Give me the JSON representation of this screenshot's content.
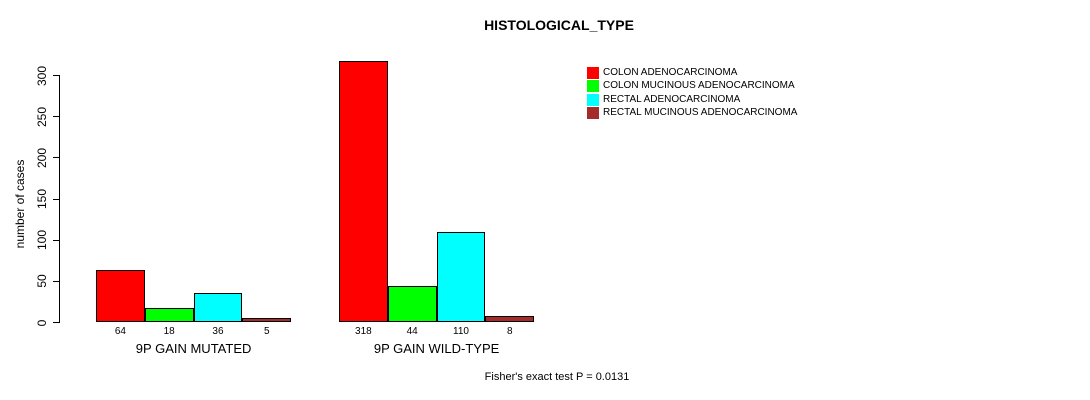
{
  "title": "HISTOLOGICAL_TYPE",
  "footer": "Fisher's exact test P = 0.0131",
  "chart_data": {
    "type": "bar",
    "title": "HISTOLOGICAL_TYPE",
    "xlabel": "",
    "ylabel": "number of cases",
    "ylim": [
      0,
      300
    ],
    "yticks": [
      0,
      50,
      100,
      150,
      200,
      250,
      300
    ],
    "grid": false,
    "legend_position": "top-right",
    "bar_value_labels_shown": true,
    "categories": [
      "9P GAIN MUTATED",
      "9P GAIN WILD-TYPE"
    ],
    "series": [
      {
        "name": "COLON ADENOCARCINOMA",
        "color": "#FF0000",
        "values": [
          64,
          318
        ]
      },
      {
        "name": "COLON MUCINOUS ADENOCARCINOMA",
        "color": "#00FF00",
        "values": [
          18,
          44
        ]
      },
      {
        "name": "RECTAL ADENOCARCINOMA",
        "color": "#00FFFF",
        "values": [
          36,
          110
        ]
      },
      {
        "name": "RECTAL MUCINOUS ADENOCARCINOMA",
        "color": "#A52A2A",
        "values": [
          5,
          8
        ]
      }
    ],
    "annotation": "Fisher's exact test P = 0.0131"
  },
  "colors": {
    "axis": "#000000",
    "bar_border": "#000000",
    "background": "#FFFFFF"
  }
}
